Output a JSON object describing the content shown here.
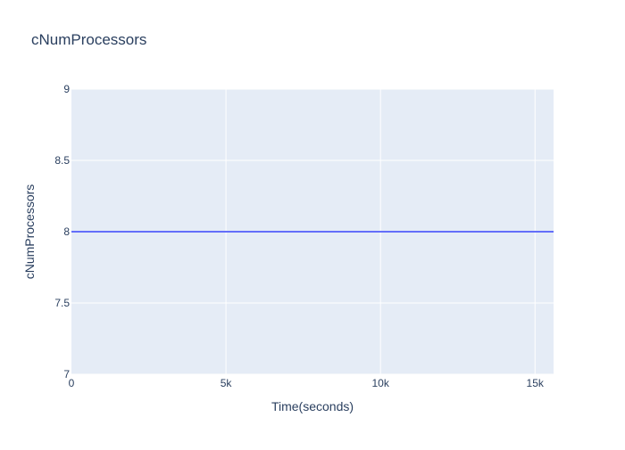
{
  "chart_data": {
    "type": "line",
    "title": "cNumProcessors",
    "xlabel": "Time(seconds)",
    "ylabel": "cNumProcessors",
    "xlim": [
      0,
      15600
    ],
    "ylim": [
      7,
      9
    ],
    "grid": true,
    "legend": "none",
    "x_ticks": [
      {
        "value": 0,
        "label": "0"
      },
      {
        "value": 5000,
        "label": "5k"
      },
      {
        "value": 10000,
        "label": "10k"
      },
      {
        "value": 15000,
        "label": "15k"
      }
    ],
    "y_ticks": [
      {
        "value": 7,
        "label": "7"
      },
      {
        "value": 7.5,
        "label": "7.5"
      },
      {
        "value": 8,
        "label": "8"
      },
      {
        "value": 8.5,
        "label": "8.5"
      },
      {
        "value": 9,
        "label": "9"
      }
    ],
    "series": [
      {
        "x": [
          0,
          15600
        ],
        "y": [
          8,
          8
        ]
      }
    ],
    "colors": {
      "plot_background": "#e5ecf6",
      "grid": "#ffffff",
      "line": "#636efa",
      "text": "#2a3f5f"
    }
  }
}
